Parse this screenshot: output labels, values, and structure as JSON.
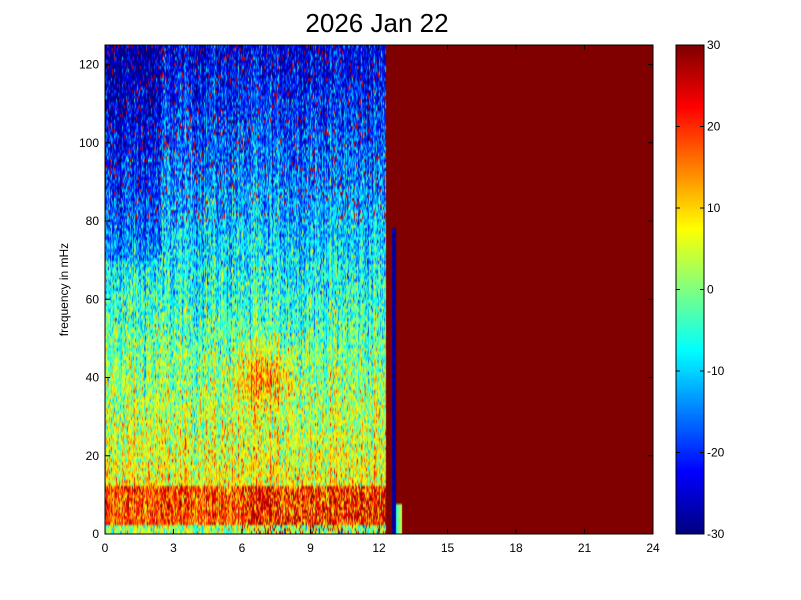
{
  "chart_data": {
    "type": "heatmap",
    "title": "2026 Jan 22",
    "xlabel": "",
    "ylabel": "frequency in mHz",
    "xlim": [
      0,
      24
    ],
    "ylim": [
      0,
      125
    ],
    "x_ticks": [
      "0",
      "3",
      "6",
      "9",
      "12",
      "15",
      "18",
      "21",
      "24"
    ],
    "y_ticks": [
      "0",
      "20",
      "40",
      "60",
      "80",
      "100",
      "120"
    ],
    "colorbar": {
      "colormap": "jet",
      "clim": [
        -30,
        30
      ],
      "ticks": [
        "-30",
        "-20",
        "-10",
        "0",
        "10",
        "20",
        "30"
      ]
    },
    "regions": [
      {
        "x_range": [
          0,
          12.3
        ],
        "description_values": "noisy spectrogram: high (≈10–30) below 10 mHz, ≈0–15 around 20–50 mHz with a local maximum near 6–8 h / 35–45 mHz, falling to ≈-20 to -30 above 80 mHz"
      },
      {
        "x_range": [
          12.3,
          13.1
        ],
        "description_values": "transition: saturated 30 with a thin low-value spike up to ≈78 mHz near 12.6 h"
      },
      {
        "x_range": [
          12.3,
          24
        ],
        "value": 30
      }
    ]
  }
}
